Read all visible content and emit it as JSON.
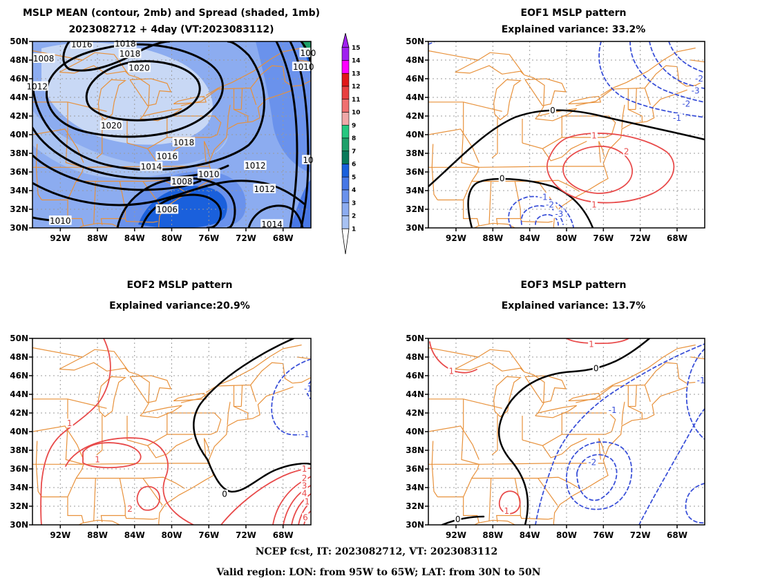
{
  "footer": {
    "line1": "NCEP fcst, IT: 2023082712, VT: 2023083112",
    "line2": "Valid region: LON: from 95W to 65W; LAT: from 30N to 50N"
  },
  "colors": {
    "coast": "#e8913a",
    "positive_contour": "#e84a4a",
    "negative_contour": "#3a50d8",
    "zero_contour": "#000000",
    "shade_levels": [
      "#c8d8f5",
      "#a8c2f2",
      "#8cacf0",
      "#6a92ec",
      "#4878e6",
      "#1a60dc",
      "#0a7a5a",
      "#1ea06a",
      "#26c880",
      "#f0a8a8",
      "#f07070",
      "#e84040",
      "#e01818",
      "#ff00ff",
      "#a020f0"
    ]
  },
  "chart_data": [
    {
      "id": "mean",
      "type": "contour",
      "title": "MSLP MEAN (contour, 2mb) and Spread (shaded, 1mb)",
      "subtitle": "2023082712 + 4day (VT:2023083112)",
      "xticks": [
        "92W",
        "88W",
        "84W",
        "80W",
        "76W",
        "72W",
        "68W"
      ],
      "yticks": [
        "50N",
        "48N",
        "46N",
        "44N",
        "42N",
        "40N",
        "38N",
        "36N",
        "34N",
        "32N",
        "30N"
      ],
      "xlim": [
        -95,
        -65
      ],
      "ylim": [
        30,
        50
      ],
      "colorbar": {
        "levels": [
          1,
          2,
          3,
          4,
          5,
          6,
          7,
          8,
          9,
          10,
          11,
          12,
          13,
          14,
          15
        ]
      },
      "contour_labels": [
        {
          "text": "1018",
          "lon": -85.0,
          "lat": 49.8
        },
        {
          "text": "1018",
          "lon": -84.5,
          "lat": 48.7
        },
        {
          "text": "1020",
          "lon": -83.5,
          "lat": 47.2
        },
        {
          "text": "1016",
          "lon": -89.7,
          "lat": 49.7
        },
        {
          "text": "1008",
          "lon": -93.8,
          "lat": 48.2
        },
        {
          "text": "1012",
          "lon": -94.5,
          "lat": 45.2
        },
        {
          "text": "1020",
          "lon": -86.5,
          "lat": 41.0
        },
        {
          "text": "1018",
          "lon": -78.7,
          "lat": 39.2
        },
        {
          "text": "1016",
          "lon": -80.5,
          "lat": 37.7
        },
        {
          "text": "1014",
          "lon": -82.2,
          "lat": 36.6
        },
        {
          "text": "1010",
          "lon": -76.0,
          "lat": 35.8
        },
        {
          "text": "1008",
          "lon": -78.9,
          "lat": 35.0
        },
        {
          "text": "1006",
          "lon": -80.5,
          "lat": 32.0
        },
        {
          "text": "1012",
          "lon": -71.0,
          "lat": 36.7
        },
        {
          "text": "1012",
          "lon": -70.0,
          "lat": 34.2
        },
        {
          "text": "1010",
          "lon": -92.0,
          "lat": 30.8
        },
        {
          "text": "1014",
          "lon": -69.2,
          "lat": 30.4
        },
        {
          "text": "1010",
          "lon": -65.8,
          "lat": 47.3
        },
        {
          "text": "100",
          "lon": -65.3,
          "lat": 48.8
        },
        {
          "text": "10",
          "lon": -65.3,
          "lat": 37.3
        }
      ]
    },
    {
      "id": "eof1",
      "type": "contour",
      "title": "EOF1 MSLP pattern",
      "subtitle": "Explained variance: 33.2%",
      "xticks": [
        "92W",
        "88W",
        "84W",
        "80W",
        "76W",
        "72W",
        "68W"
      ],
      "yticks": [
        "50N",
        "48N",
        "46N",
        "44N",
        "42N",
        "40N",
        "38N",
        "36N",
        "34N",
        "32N",
        "30N"
      ],
      "xlim": [
        -95,
        -65
      ],
      "ylim": [
        30,
        50
      ],
      "contour_labels": [
        {
          "text": "0",
          "lon": -81.5,
          "lat": 42.6,
          "sign": "zero"
        },
        {
          "text": "0",
          "lon": -87.0,
          "lat": 35.3,
          "sign": "zero"
        },
        {
          "text": "1",
          "lon": -77.0,
          "lat": 39.9,
          "sign": "pos"
        },
        {
          "text": "2",
          "lon": -73.5,
          "lat": 38.2,
          "sign": "pos"
        },
        {
          "text": "1",
          "lon": -77.0,
          "lat": 32.5,
          "sign": "pos"
        },
        {
          "text": "-1",
          "lon": -82.5,
          "lat": 33.3,
          "sign": "neg"
        },
        {
          "text": "-2",
          "lon": -81.8,
          "lat": 32.5,
          "sign": "neg"
        },
        {
          "text": "-3",
          "lon": -80.8,
          "lat": 31.5,
          "sign": "neg"
        },
        {
          "text": "-1",
          "lon": -68.0,
          "lat": 41.8,
          "sign": "neg"
        },
        {
          "text": "-2",
          "lon": -67.0,
          "lat": 43.3,
          "sign": "neg"
        },
        {
          "text": "-3",
          "lon": -66.0,
          "lat": 44.7,
          "sign": "neg"
        },
        {
          "text": "-2",
          "lon": -65.6,
          "lat": 46.0,
          "sign": "neg"
        }
      ]
    },
    {
      "id": "eof2",
      "type": "contour",
      "title": "EOF2 MSLP pattern",
      "subtitle": "Explained variance:20.9%",
      "xticks": [
        "92W",
        "88W",
        "84W",
        "80W",
        "76W",
        "72W",
        "68W"
      ],
      "yticks": [
        "50N",
        "48N",
        "46N",
        "44N",
        "42N",
        "40N",
        "38N",
        "36N",
        "34N",
        "32N",
        "30N"
      ],
      "xlim": [
        -95,
        -65
      ],
      "ylim": [
        30,
        50
      ],
      "contour_labels": [
        {
          "text": "0",
          "lon": -74.3,
          "lat": 33.3,
          "sign": "zero"
        },
        {
          "text": "1",
          "lon": -91.0,
          "lat": 40.9,
          "sign": "pos"
        },
        {
          "text": "1",
          "lon": -88.0,
          "lat": 37.0,
          "sign": "pos"
        },
        {
          "text": "2",
          "lon": -84.5,
          "lat": 31.7,
          "sign": "pos"
        },
        {
          "text": "1",
          "lon": -65.7,
          "lat": 36.0,
          "sign": "pos"
        },
        {
          "text": "2",
          "lon": -65.7,
          "lat": 35.0,
          "sign": "pos"
        },
        {
          "text": "3",
          "lon": -65.7,
          "lat": 34.2,
          "sign": "pos"
        },
        {
          "text": "4",
          "lon": -65.7,
          "lat": 33.4,
          "sign": "pos"
        },
        {
          "text": "1",
          "lon": -65.4,
          "lat": 32.5,
          "sign": "pos"
        },
        {
          "text": "6",
          "lon": -65.6,
          "lat": 30.8,
          "sign": "pos"
        },
        {
          "text": "-1",
          "lon": -65.6,
          "lat": 39.7,
          "sign": "neg"
        },
        {
          "text": "-1",
          "lon": -65.3,
          "lat": 44.6,
          "sign": "neg"
        }
      ]
    },
    {
      "id": "eof3",
      "type": "contour",
      "title": "EOF3 MSLP pattern",
      "subtitle": "Explained variance: 13.7%",
      "xticks": [
        "92W",
        "88W",
        "84W",
        "80W",
        "76W",
        "72W",
        "68W"
      ],
      "yticks": [
        "50N",
        "48N",
        "46N",
        "44N",
        "42N",
        "40N",
        "38N",
        "36N",
        "34N",
        "32N",
        "30N"
      ],
      "xlim": [
        -95,
        -65
      ],
      "ylim": [
        30,
        50
      ],
      "contour_labels": [
        {
          "text": "0",
          "lon": -76.8,
          "lat": 46.8,
          "sign": "zero"
        },
        {
          "text": "0",
          "lon": -91.8,
          "lat": 30.6,
          "sign": "zero"
        },
        {
          "text": "1",
          "lon": -77.3,
          "lat": 49.4,
          "sign": "pos"
        },
        {
          "text": "1",
          "lon": -92.5,
          "lat": 46.5,
          "sign": "pos"
        },
        {
          "text": "1",
          "lon": -86.5,
          "lat": 31.5,
          "sign": "pos"
        },
        {
          "text": "-1",
          "lon": -75.0,
          "lat": 42.3,
          "sign": "neg"
        },
        {
          "text": "-2",
          "lon": -77.2,
          "lat": 36.7,
          "sign": "neg"
        },
        {
          "text": "-1",
          "lon": -65.4,
          "lat": 45.5,
          "sign": "neg"
        }
      ]
    }
  ]
}
